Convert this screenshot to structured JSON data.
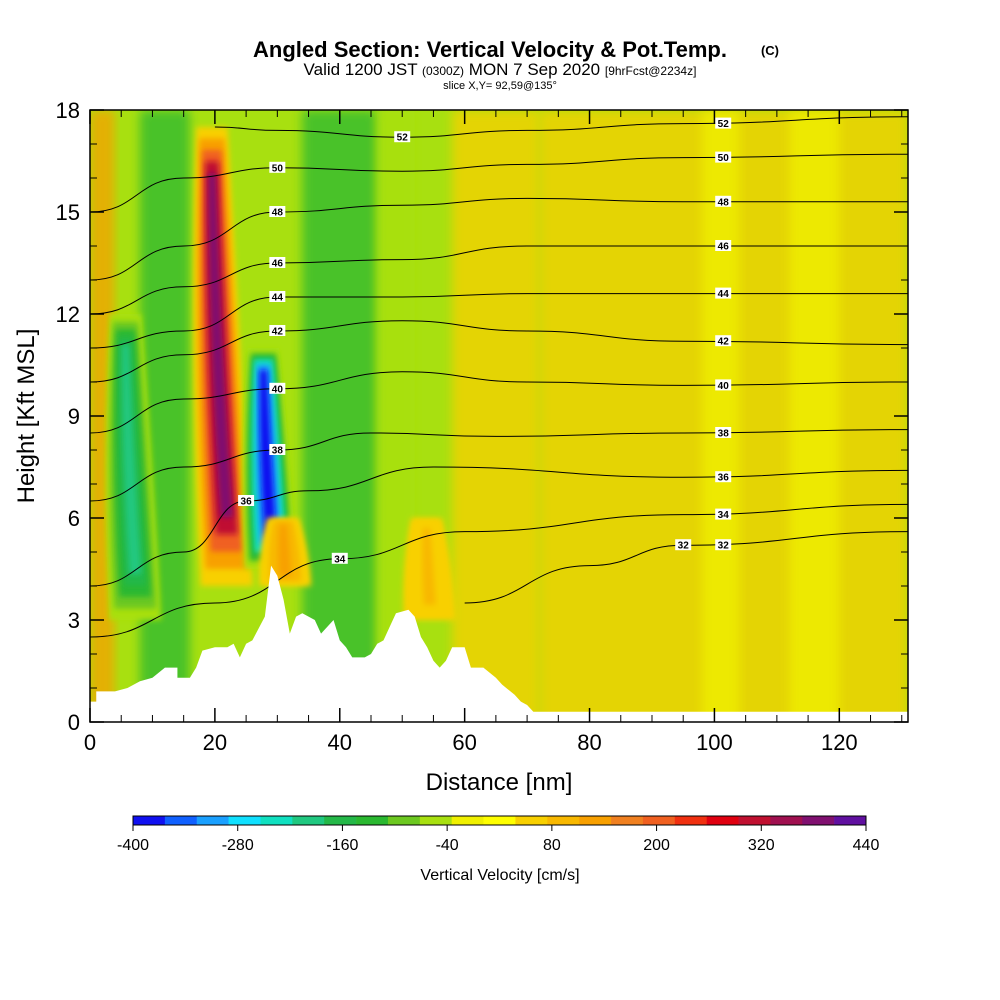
{
  "chart_data": {
    "type": "heatmap",
    "title": "Angled Section: Vertical Velocity & Pot.Temp.",
    "title_mark": "(C)",
    "subtitle_parts": [
      "Valid 1200 JST",
      "(0300Z)",
      "MON 7 Sep 2020",
      "[9hrFcst@2234z]"
    ],
    "slice_label": "slice X,Y= 92,59@135°",
    "xlabel": "Distance [nm]",
    "ylabel": "Height [Kft MSL]",
    "xlim": [
      0,
      131
    ],
    "ylim": [
      0,
      18
    ],
    "x_ticks": [
      "0",
      "20",
      "40",
      "60",
      "80",
      "100",
      "120"
    ],
    "y_ticks": [
      "0",
      "3",
      "6",
      "9",
      "12",
      "15",
      "18"
    ],
    "colorbar": {
      "label": "Vertical Velocity [cm/s]",
      "tick_labels": [
        "-400",
        "-280",
        "-160",
        "-40",
        "80",
        "200",
        "320",
        "440"
      ],
      "colors": [
        "#1010f0",
        "#1060ff",
        "#1aa0ff",
        "#10e0ff",
        "#10e0c0",
        "#20c880",
        "#24b848",
        "#2ab830",
        "#6cc820",
        "#a8e010",
        "#f0f000",
        "#ffff00",
        "#f8d000",
        "#f8b800",
        "#f8a000",
        "#f08020",
        "#f06020",
        "#f03010",
        "#e00010",
        "#c01030",
        "#a01050",
        "#801070",
        "#6010a0"
      ]
    },
    "vertical_velocity_features": [
      {
        "kind": "updraft",
        "x": 20,
        "y_bottom": 4,
        "y_top": 17.5,
        "value": 380
      },
      {
        "kind": "downdraft",
        "x": 28,
        "y_bottom": 4.5,
        "y_top": 11,
        "value": -400
      },
      {
        "kind": "downdraft",
        "x": 6,
        "y_bottom": 3,
        "y_top": 12,
        "value": -200
      },
      {
        "kind": "updraft",
        "x": 31,
        "y_bottom": 4,
        "y_top": 6,
        "value": 120
      },
      {
        "kind": "updraft",
        "x": 54,
        "y_bottom": 3,
        "y_top": 6,
        "value": 80
      }
    ],
    "terrain": [
      [
        0,
        0.6
      ],
      [
        1,
        0.6
      ],
      [
        1,
        0.9
      ],
      [
        4,
        0.9
      ],
      [
        6,
        1
      ],
      [
        8,
        1.2
      ],
      [
        10,
        1.3
      ],
      [
        12,
        1.6
      ],
      [
        14,
        1.6
      ],
      [
        14,
        1.3
      ],
      [
        16,
        1.3
      ],
      [
        17,
        1.6
      ],
      [
        18,
        2.1
      ],
      [
        20,
        2.2
      ],
      [
        22,
        2.2
      ],
      [
        23,
        2.3
      ],
      [
        24,
        1.9
      ],
      [
        25,
        2.3
      ],
      [
        26,
        2.4
      ],
      [
        28,
        3.1
      ],
      [
        29,
        4.6
      ],
      [
        30,
        4.3
      ],
      [
        31,
        3.6
      ],
      [
        32,
        2.6
      ],
      [
        33,
        3.1
      ],
      [
        34,
        3.2
      ],
      [
        36,
        3.0
      ],
      [
        37,
        2.6
      ],
      [
        39,
        3.0
      ],
      [
        40,
        2.4
      ],
      [
        41,
        2.2
      ],
      [
        42,
        1.9
      ],
      [
        44,
        1.9
      ],
      [
        45,
        2.0
      ],
      [
        46,
        2.3
      ],
      [
        47,
        2.4
      ],
      [
        48,
        2.8
      ],
      [
        49,
        3.2
      ],
      [
        51,
        3.3
      ],
      [
        52,
        3.1
      ],
      [
        53,
        2.5
      ],
      [
        54,
        2.2
      ],
      [
        55,
        1.8
      ],
      [
        56,
        1.6
      ],
      [
        57,
        1.8
      ],
      [
        58,
        2.2
      ],
      [
        60,
        2.2
      ],
      [
        61,
        1.6
      ],
      [
        63,
        1.6
      ],
      [
        65,
        1.3
      ],
      [
        66,
        1.1
      ],
      [
        68,
        0.8
      ],
      [
        69,
        0.6
      ],
      [
        70,
        0.5
      ],
      [
        71,
        0.3
      ],
      [
        131,
        0.3
      ]
    ],
    "pot_temp_contours": [
      {
        "value": 32,
        "x_points": [
          [
            60,
            3.5
          ],
          [
            80,
            4.6
          ],
          [
            95,
            5.2
          ],
          [
            131,
            5.6
          ]
        ]
      },
      {
        "value": 34,
        "x_points": [
          [
            0,
            2.5
          ],
          [
            20,
            3.5
          ],
          [
            40,
            4.8
          ],
          [
            60,
            5.6
          ],
          [
            95,
            6.1
          ],
          [
            131,
            6.4
          ]
        ]
      },
      {
        "value": 36,
        "x_points": [
          [
            0,
            4
          ],
          [
            15,
            5
          ],
          [
            25,
            6.5
          ],
          [
            35,
            6.8
          ],
          [
            55,
            7.5
          ],
          [
            95,
            7.2
          ],
          [
            131,
            7.4
          ]
        ]
      },
      {
        "value": 38,
        "x_points": [
          [
            0,
            6.5
          ],
          [
            15,
            7.5
          ],
          [
            30,
            8
          ],
          [
            45,
            8.5
          ],
          [
            65,
            8.4
          ],
          [
            95,
            8.5
          ],
          [
            131,
            8.6
          ]
        ]
      },
      {
        "value": 40,
        "x_points": [
          [
            0,
            8.5
          ],
          [
            15,
            9.5
          ],
          [
            30,
            9.8
          ],
          [
            50,
            10.3
          ],
          [
            70,
            10
          ],
          [
            95,
            9.9
          ],
          [
            131,
            10
          ]
        ]
      },
      {
        "value": 42,
        "x_points": [
          [
            0,
            10
          ],
          [
            15,
            10.8
          ],
          [
            30,
            11.5
          ],
          [
            50,
            11.8
          ],
          [
            70,
            11.5
          ],
          [
            95,
            11.2
          ],
          [
            131,
            11.1
          ]
        ]
      },
      {
        "value": 44,
        "x_points": [
          [
            0,
            11
          ],
          [
            15,
            11.5
          ],
          [
            30,
            12.5
          ],
          [
            50,
            12.5
          ],
          [
            70,
            12.6
          ],
          [
            95,
            12.6
          ],
          [
            131,
            12.6
          ]
        ]
      },
      {
        "value": 46,
        "x_points": [
          [
            0,
            12
          ],
          [
            15,
            12.8
          ],
          [
            30,
            13.5
          ],
          [
            50,
            13.6
          ],
          [
            70,
            14
          ],
          [
            95,
            14
          ],
          [
            131,
            14
          ]
        ]
      },
      {
        "value": 48,
        "x_points": [
          [
            0,
            13
          ],
          [
            15,
            14
          ],
          [
            30,
            15
          ],
          [
            50,
            15.2
          ],
          [
            70,
            15.4
          ],
          [
            95,
            15.3
          ],
          [
            131,
            15.3
          ]
        ]
      },
      {
        "value": 50,
        "x_points": [
          [
            0,
            15
          ],
          [
            15,
            16
          ],
          [
            30,
            16.3
          ],
          [
            50,
            16.2
          ],
          [
            70,
            16.4
          ],
          [
            95,
            16.6
          ],
          [
            131,
            16.7
          ]
        ]
      },
      {
        "value": 52,
        "x_points": [
          [
            20,
            17.5
          ],
          [
            30,
            17.4
          ],
          [
            50,
            17.2
          ],
          [
            70,
            17.4
          ],
          [
            95,
            17.6
          ],
          [
            131,
            17.8
          ]
        ]
      }
    ]
  }
}
